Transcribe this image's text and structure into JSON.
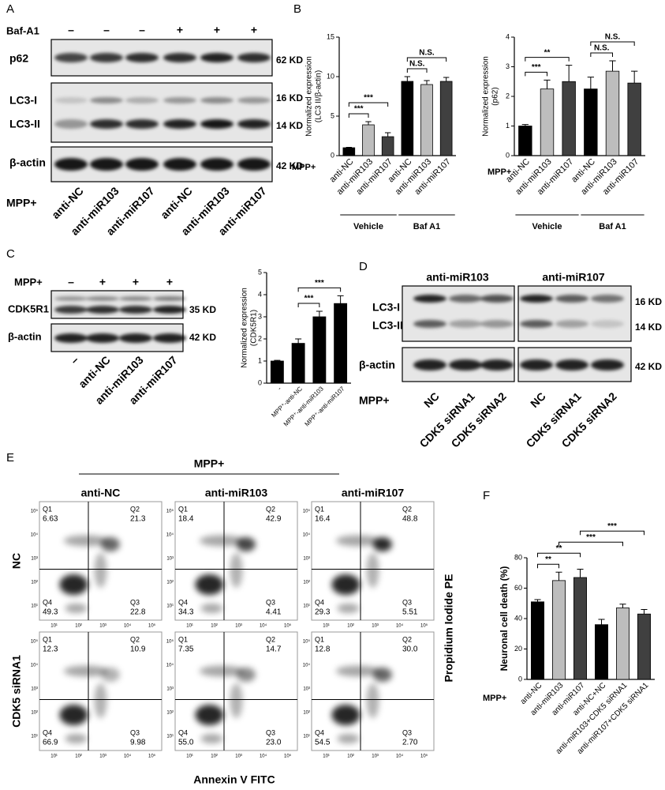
{
  "blot_a": {
    "panel": "A",
    "treatment_label": "Baf-A1",
    "treatment": [
      "–",
      "–",
      "–",
      "+",
      "+",
      "+"
    ],
    "bands": [
      "p62",
      "LC3-I",
      "LC3-II",
      "β-actin"
    ],
    "sizes": [
      "62 KD",
      "16 KD",
      "14 KD",
      "42 KD"
    ],
    "lane_prefix": "MPP+",
    "lanes": [
      "anti-NC",
      "anti-miR103",
      "anti-miR107",
      "anti-NC",
      "anti-miR103",
      "anti-miR107"
    ]
  },
  "panel_b": "B",
  "chart_data": [
    {
      "type": "bar",
      "ylabel": [
        "Normalized expression",
        "(LC3 II/β-actin)"
      ],
      "ylim": [
        0,
        15
      ],
      "yticks": [
        0,
        5,
        10,
        15
      ],
      "categories": [
        "anti-NC",
        "anti-miR103",
        "anti-miR107",
        "anti-NC",
        "anti-miR103",
        "anti-miR107"
      ],
      "values": [
        1,
        3.9,
        2.4,
        9.4,
        9,
        9.4
      ],
      "errors": [
        0.05,
        0.4,
        0.5,
        0.6,
        0.5,
        0.5
      ],
      "colors": [
        "#000000",
        "#bdbdbd",
        "#404040",
        "#000000",
        "#bdbdbd",
        "#404040"
      ],
      "annotations": [
        {
          "text": "***",
          "pair": [
            0,
            1
          ]
        },
        {
          "text": "***",
          "pair": [
            0,
            2
          ]
        },
        {
          "text": "N.S.",
          "pair": [
            3,
            4
          ]
        },
        {
          "text": "N.S.",
          "pair": [
            3,
            5
          ]
        }
      ],
      "prefix": "MPP+",
      "groups": [
        {
          "label": "Vehicle",
          "span": [
            0,
            2
          ]
        },
        {
          "label": "Baf A1",
          "span": [
            3,
            5
          ]
        }
      ]
    },
    {
      "type": "bar",
      "ylabel": [
        "Normalized expression",
        "(p62)"
      ],
      "ylim": [
        0,
        4
      ],
      "yticks": [
        0,
        1,
        2,
        3,
        4
      ],
      "categories": [
        "anti-NC",
        "anti-miR103",
        "anti-miR107",
        "anti-NC",
        "anti-miR103",
        "anti-miR107"
      ],
      "values": [
        1,
        2.25,
        2.5,
        2.25,
        2.85,
        2.45
      ],
      "errors": [
        0.05,
        0.3,
        0.55,
        0.4,
        0.35,
        0.4
      ],
      "colors": [
        "#000000",
        "#bdbdbd",
        "#404040",
        "#000000",
        "#bdbdbd",
        "#404040"
      ],
      "annotations": [
        {
          "text": "***",
          "pair": [
            0,
            1
          ]
        },
        {
          "text": "**",
          "pair": [
            0,
            2
          ]
        },
        {
          "text": "N.S.",
          "pair": [
            3,
            4
          ]
        },
        {
          "text": "N.S.",
          "pair": [
            3,
            5
          ]
        }
      ],
      "prefix": "MPP+",
      "groups": [
        {
          "label": "Vehicle",
          "span": [
            0,
            2
          ]
        },
        {
          "label": "Baf A1",
          "span": [
            3,
            5
          ]
        }
      ]
    },
    {
      "type": "bar",
      "ylabel": [
        "Normalized expression",
        "(CDK5R1)"
      ],
      "ylim": [
        0,
        5
      ],
      "yticks": [
        0,
        1,
        2,
        3,
        4,
        5
      ],
      "categories": [
        "-",
        "MPP⁺-anti-NC",
        "MPP⁺-anti-miR103",
        "MPP⁺-anti-miR107"
      ],
      "values": [
        1,
        1.8,
        3,
        3.6
      ],
      "errors": [
        0.03,
        0.2,
        0.25,
        0.35
      ],
      "colors": [
        "#000000",
        "#000000",
        "#000000",
        "#000000"
      ],
      "annotations": [
        {
          "text": "***",
          "pair": [
            1,
            2
          ]
        },
        {
          "text": "***",
          "pair": [
            1,
            3
          ]
        }
      ]
    },
    {
      "type": "bar",
      "panel": "F",
      "ylabel": [
        "Neuronal cell death (%)"
      ],
      "ylim": [
        0,
        80
      ],
      "yticks": [
        0,
        20,
        40,
        60,
        80
      ],
      "categories": [
        "anti-NC",
        "anti-miR103",
        "anti-miR107",
        "anti-NC+NC",
        "anti-miR103+CDK5 siRNA1",
        "anti-miR107+CDK5 siRNA1"
      ],
      "values": [
        51,
        65,
        67,
        36,
        47,
        43
      ],
      "errors": [
        1.5,
        5.5,
        5.5,
        3.5,
        2.5,
        3
      ],
      "colors": [
        "#000000",
        "#bdbdbd",
        "#404040",
        "#000000",
        "#bdbdbd",
        "#404040"
      ],
      "annotations": [
        {
          "text": "**",
          "pair": [
            0,
            1
          ]
        },
        {
          "text": "**",
          "pair": [
            0,
            2
          ]
        },
        {
          "text": "***",
          "pair": [
            1,
            4
          ]
        },
        {
          "text": "***",
          "pair": [
            2,
            5
          ]
        }
      ],
      "prefix": "MPP+"
    }
  ],
  "blot_c": {
    "panel": "C",
    "treatment_label": "MPP+",
    "treatment": [
      "–",
      "+",
      "+",
      "+"
    ],
    "bands": [
      "CDK5R1",
      "β-actin"
    ],
    "sizes": [
      "35 KD",
      "42 KD"
    ],
    "lanes": [
      "–",
      "anti-NC",
      "anti-miR103",
      "anti-miR107"
    ]
  },
  "blot_d": {
    "panel": "D",
    "groups": [
      "anti-miR103",
      "anti-miR107"
    ],
    "bands": [
      "LC3-I",
      "LC3-II",
      "β-actin"
    ],
    "sizes": [
      "16 KD",
      "14 KD",
      "42 KD"
    ],
    "lane_prefix": "MPP+",
    "lanes": [
      "NC",
      "CDK5 siRNA1",
      "CDK5 siRNA2",
      "NC",
      "CDK5 siRNA1",
      "CDK5 siRNA2"
    ]
  },
  "flow": {
    "panel": "E",
    "title": "MPP+",
    "columns": [
      "anti-NC",
      "anti-miR103",
      "anti-miR107"
    ],
    "rows": [
      "NC",
      "CDK5 siRNA1"
    ],
    "quadrants": [
      "Q1",
      "Q2",
      "Q3",
      "Q4"
    ],
    "plots": [
      [
        [
          "6.63",
          "21.3",
          "22.8",
          "49.3"
        ],
        [
          "18.4",
          "42.9",
          "4.41",
          "34.3"
        ],
        [
          "16.4",
          "48.8",
          "5.51",
          "29.3"
        ]
      ],
      [
        [
          "12.3",
          "10.9",
          "9.98",
          "66.9"
        ],
        [
          "7.35",
          "14.7",
          "23.0",
          "55.0"
        ],
        [
          "12.8",
          "30.0",
          "2.70",
          "54.5"
        ]
      ]
    ],
    "log_ticks": [
      "10¹",
      "10²",
      "10³",
      "10⁴",
      "10⁵"
    ],
    "xlabel": "Annexin V FITC",
    "ylabel": "Propidium Iodide PE"
  }
}
